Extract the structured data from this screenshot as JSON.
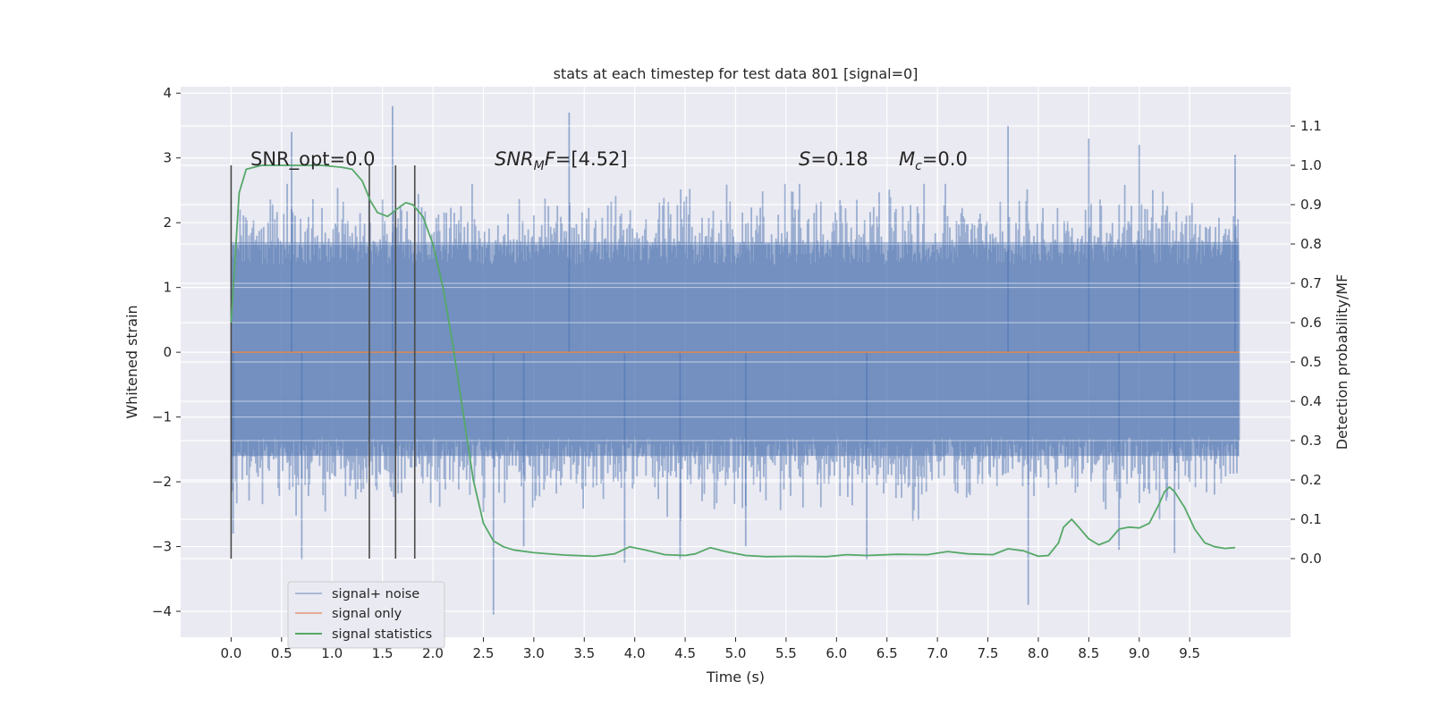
{
  "chart_data": {
    "type": "line",
    "title": "stats at each timestep for test data 801 [signal=0]",
    "xlabel": "Time (s)",
    "ylabel": "Whitened strain",
    "ylabel_right": "Detection probability/MF",
    "xlim": [
      -0.5,
      10.5
    ],
    "ylim": [
      -4.4,
      4.1
    ],
    "ylim_right": [
      -0.2,
      1.2
    ],
    "x_ticks": [
      "0.0",
      "0.5",
      "1.0",
      "1.5",
      "2.0",
      "2.5",
      "3.0",
      "3.5",
      "4.0",
      "4.5",
      "5.0",
      "5.5",
      "6.0",
      "6.5",
      "7.0",
      "7.5",
      "8.0",
      "8.5",
      "9.0",
      "9.5"
    ],
    "y_ticks": [
      "−4",
      "−3",
      "−2",
      "−1",
      "0",
      "1",
      "2",
      "3",
      "4"
    ],
    "y_ticks_right": [
      "0.0",
      "0.1",
      "0.2",
      "0.3",
      "0.4",
      "0.5",
      "0.6",
      "0.7",
      "0.8",
      "0.9",
      "1.0",
      "1.1"
    ],
    "grid": true,
    "legend_position": "lower-left",
    "colors": {
      "background": "#eaeaf2",
      "grid": "#ffffff",
      "noise": "#4c72b0",
      "signal": "#dd8452",
      "statistics": "#55a868",
      "marker": "#4a4a4a"
    },
    "annotations": {
      "snr_opt": {
        "text": "SNR_opt=0.0"
      },
      "snr_mf": {
        "sym": "SNR",
        "sub": "M",
        "sym2": "F",
        "rest": "=[4.52]"
      },
      "s": {
        "sym": "S",
        "rest": "=0.18"
      },
      "mc": {
        "sym": "M",
        "sub": "c",
        "rest": "=0.0"
      }
    },
    "vertical_markers_x": [
      0.0,
      1.37,
      1.63,
      1.82
    ],
    "series": [
      {
        "name": "signal+ noise",
        "kind": "noise-band",
        "x_range": [
          0.0,
          9.99
        ],
        "band_range": [
          -1.6,
          1.7
        ],
        "spikes": [
          [
            0.6,
            3.4
          ],
          [
            1.6,
            3.8
          ],
          [
            3.35,
            3.7
          ],
          [
            7.7,
            3.5
          ],
          [
            8.5,
            3.3
          ],
          [
            9.0,
            3.2
          ],
          [
            9.95,
            3.05
          ],
          [
            0.02,
            -2.8
          ],
          [
            2.6,
            -4.05
          ],
          [
            7.9,
            -3.9
          ],
          [
            4.45,
            -3.2
          ],
          [
            3.9,
            -3.25
          ],
          [
            6.3,
            -3.2
          ],
          [
            9.35,
            -3.1
          ],
          [
            0.7,
            -3.2
          ],
          [
            2.9,
            -3.0
          ],
          [
            5.1,
            -3.0
          ],
          [
            8.8,
            -3.05
          ]
        ]
      },
      {
        "name": "signal only",
        "kind": "line",
        "x": [
          0.0,
          9.99
        ],
        "y": [
          0.0,
          0.0
        ]
      },
      {
        "name": "signal statistics",
        "kind": "line",
        "axis": "right",
        "x": [
          0.0,
          0.08,
          0.15,
          0.3,
          0.6,
          0.9,
          1.1,
          1.2,
          1.3,
          1.38,
          1.45,
          1.55,
          1.65,
          1.73,
          1.8,
          1.9,
          2.0,
          2.1,
          2.2,
          2.3,
          2.4,
          2.5,
          2.6,
          2.7,
          2.8,
          3.0,
          3.3,
          3.6,
          3.8,
          3.95,
          4.1,
          4.3,
          4.5,
          4.6,
          4.75,
          4.9,
          5.1,
          5.3,
          5.6,
          5.9,
          6.1,
          6.3,
          6.6,
          6.9,
          7.1,
          7.3,
          7.55,
          7.7,
          7.85,
          8.0,
          8.1,
          8.2,
          8.25,
          8.33,
          8.4,
          8.5,
          8.6,
          8.7,
          8.8,
          8.9,
          9.0,
          9.1,
          9.2,
          9.25,
          9.3,
          9.35,
          9.45,
          9.55,
          9.65,
          9.75,
          9.85,
          9.95
        ],
        "y": [
          0.6,
          0.93,
          0.99,
          1.0,
          1.0,
          1.0,
          0.995,
          0.99,
          0.96,
          0.91,
          0.88,
          0.87,
          0.89,
          0.905,
          0.9,
          0.87,
          0.8,
          0.69,
          0.54,
          0.37,
          0.2,
          0.09,
          0.045,
          0.03,
          0.022,
          0.015,
          0.009,
          0.006,
          0.012,
          0.03,
          0.022,
          0.01,
          0.008,
          0.012,
          0.028,
          0.018,
          0.008,
          0.005,
          0.006,
          0.005,
          0.01,
          0.008,
          0.011,
          0.01,
          0.018,
          0.012,
          0.01,
          0.025,
          0.02,
          0.006,
          0.008,
          0.04,
          0.08,
          0.1,
          0.08,
          0.05,
          0.035,
          0.045,
          0.075,
          0.08,
          0.078,
          0.09,
          0.14,
          0.17,
          0.182,
          0.17,
          0.13,
          0.075,
          0.04,
          0.03,
          0.026,
          0.028
        ]
      }
    ]
  }
}
